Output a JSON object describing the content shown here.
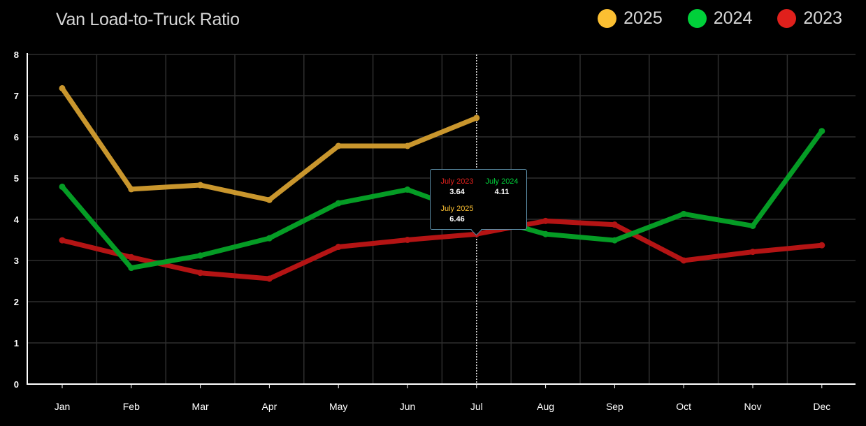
{
  "title": "Van Load-to-Truck Ratio",
  "legend": [
    {
      "label": "2025",
      "color": "#fbbf32"
    },
    {
      "label": "2024",
      "color": "#00d03a"
    },
    {
      "label": "2023",
      "color": "#e0201c"
    }
  ],
  "tooltip": {
    "entries": [
      {
        "label": "July 2023",
        "value": "3.64",
        "color": "#e0201c"
      },
      {
        "label": "July 2024",
        "value": "4.11",
        "color": "#00d03a"
      },
      {
        "label": "July 2025",
        "value": "6.46",
        "color": "#fbbf32"
      }
    ]
  },
  "chart_data": {
    "type": "line",
    "title": "Van Load-to-Truck Ratio",
    "categories": [
      "Jan",
      "Feb",
      "Mar",
      "Apr",
      "May",
      "Jun",
      "Jul",
      "Aug",
      "Sep",
      "Oct",
      "Nov",
      "Dec"
    ],
    "ylim": [
      0,
      8
    ],
    "yticks": [
      "0",
      "1",
      "2",
      "3",
      "4",
      "5",
      "6",
      "7",
      "8"
    ],
    "grid": true,
    "legend_position": "top-right",
    "hover_category": "Jul",
    "series": [
      {
        "name": "2025",
        "color": "#c9962d",
        "values": [
          7.18,
          4.73,
          4.83,
          4.47,
          5.78,
          5.78,
          6.46,
          null,
          null,
          null,
          null,
          null
        ]
      },
      {
        "name": "2024",
        "color": "#059c25",
        "values": [
          4.79,
          2.82,
          3.12,
          3.54,
          4.39,
          4.72,
          4.11,
          3.64,
          3.49,
          4.13,
          3.84,
          6.14
        ]
      },
      {
        "name": "2023",
        "color": "#b41414",
        "values": [
          3.49,
          3.08,
          2.7,
          2.56,
          3.33,
          3.5,
          3.64,
          3.96,
          3.87,
          3.0,
          3.21,
          3.37
        ]
      }
    ]
  }
}
